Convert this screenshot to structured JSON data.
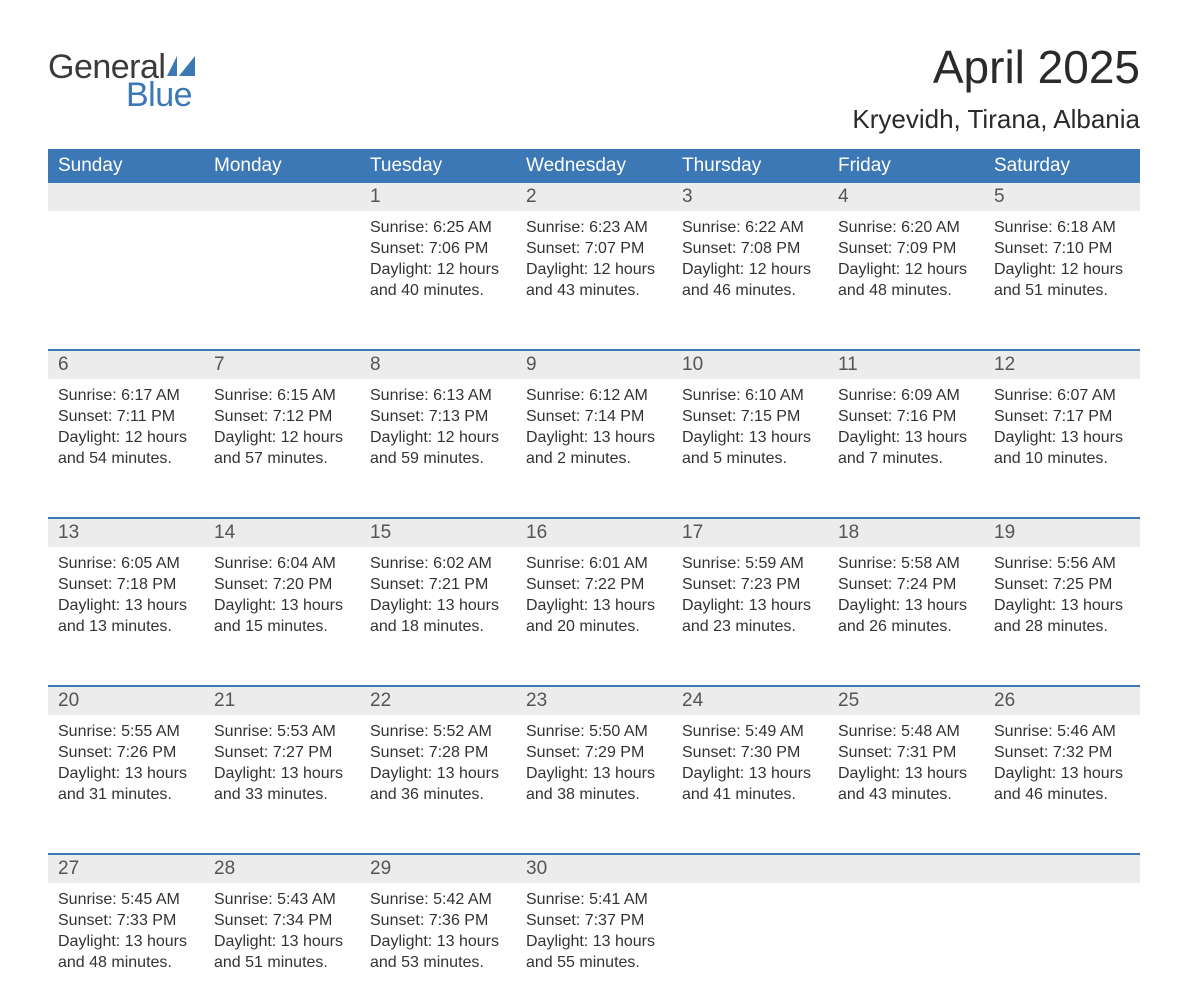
{
  "logo": {
    "line1": "General",
    "line2": "Blue",
    "icon_color": "#3b78b5"
  },
  "title": "April 2025",
  "location": "Kryevidh, Tirana, Albania",
  "colors": {
    "header_bg": "#3b78b5",
    "header_text": "#ffffff",
    "daynum_bg": "#ececec",
    "daynum_text": "#555555",
    "body_text": "#333333",
    "rule": "#3b78b5",
    "page_bg": "#ffffff"
  },
  "fonts": {
    "title_size_pt": 34,
    "location_size_pt": 20,
    "header_size_pt": 14,
    "daynum_size_pt": 14,
    "body_size_pt": 12
  },
  "columns": [
    "Sunday",
    "Monday",
    "Tuesday",
    "Wednesday",
    "Thursday",
    "Friday",
    "Saturday"
  ],
  "weeks": [
    [
      {
        "n": "",
        "sunrise": "",
        "sunset": "",
        "daylight": ""
      },
      {
        "n": "",
        "sunrise": "",
        "sunset": "",
        "daylight": ""
      },
      {
        "n": "1",
        "sunrise": "6:25 AM",
        "sunset": "7:06 PM",
        "daylight": "12 hours and 40 minutes."
      },
      {
        "n": "2",
        "sunrise": "6:23 AM",
        "sunset": "7:07 PM",
        "daylight": "12 hours and 43 minutes."
      },
      {
        "n": "3",
        "sunrise": "6:22 AM",
        "sunset": "7:08 PM",
        "daylight": "12 hours and 46 minutes."
      },
      {
        "n": "4",
        "sunrise": "6:20 AM",
        "sunset": "7:09 PM",
        "daylight": "12 hours and 48 minutes."
      },
      {
        "n": "5",
        "sunrise": "6:18 AM",
        "sunset": "7:10 PM",
        "daylight": "12 hours and 51 minutes."
      }
    ],
    [
      {
        "n": "6",
        "sunrise": "6:17 AM",
        "sunset": "7:11 PM",
        "daylight": "12 hours and 54 minutes."
      },
      {
        "n": "7",
        "sunrise": "6:15 AM",
        "sunset": "7:12 PM",
        "daylight": "12 hours and 57 minutes."
      },
      {
        "n": "8",
        "sunrise": "6:13 AM",
        "sunset": "7:13 PM",
        "daylight": "12 hours and 59 minutes."
      },
      {
        "n": "9",
        "sunrise": "6:12 AM",
        "sunset": "7:14 PM",
        "daylight": "13 hours and 2 minutes."
      },
      {
        "n": "10",
        "sunrise": "6:10 AM",
        "sunset": "7:15 PM",
        "daylight": "13 hours and 5 minutes."
      },
      {
        "n": "11",
        "sunrise": "6:09 AM",
        "sunset": "7:16 PM",
        "daylight": "13 hours and 7 minutes."
      },
      {
        "n": "12",
        "sunrise": "6:07 AM",
        "sunset": "7:17 PM",
        "daylight": "13 hours and 10 minutes."
      }
    ],
    [
      {
        "n": "13",
        "sunrise": "6:05 AM",
        "sunset": "7:18 PM",
        "daylight": "13 hours and 13 minutes."
      },
      {
        "n": "14",
        "sunrise": "6:04 AM",
        "sunset": "7:20 PM",
        "daylight": "13 hours and 15 minutes."
      },
      {
        "n": "15",
        "sunrise": "6:02 AM",
        "sunset": "7:21 PM",
        "daylight": "13 hours and 18 minutes."
      },
      {
        "n": "16",
        "sunrise": "6:01 AM",
        "sunset": "7:22 PM",
        "daylight": "13 hours and 20 minutes."
      },
      {
        "n": "17",
        "sunrise": "5:59 AM",
        "sunset": "7:23 PM",
        "daylight": "13 hours and 23 minutes."
      },
      {
        "n": "18",
        "sunrise": "5:58 AM",
        "sunset": "7:24 PM",
        "daylight": "13 hours and 26 minutes."
      },
      {
        "n": "19",
        "sunrise": "5:56 AM",
        "sunset": "7:25 PM",
        "daylight": "13 hours and 28 minutes."
      }
    ],
    [
      {
        "n": "20",
        "sunrise": "5:55 AM",
        "sunset": "7:26 PM",
        "daylight": "13 hours and 31 minutes."
      },
      {
        "n": "21",
        "sunrise": "5:53 AM",
        "sunset": "7:27 PM",
        "daylight": "13 hours and 33 minutes."
      },
      {
        "n": "22",
        "sunrise": "5:52 AM",
        "sunset": "7:28 PM",
        "daylight": "13 hours and 36 minutes."
      },
      {
        "n": "23",
        "sunrise": "5:50 AM",
        "sunset": "7:29 PM",
        "daylight": "13 hours and 38 minutes."
      },
      {
        "n": "24",
        "sunrise": "5:49 AM",
        "sunset": "7:30 PM",
        "daylight": "13 hours and 41 minutes."
      },
      {
        "n": "25",
        "sunrise": "5:48 AM",
        "sunset": "7:31 PM",
        "daylight": "13 hours and 43 minutes."
      },
      {
        "n": "26",
        "sunrise": "5:46 AM",
        "sunset": "7:32 PM",
        "daylight": "13 hours and 46 minutes."
      }
    ],
    [
      {
        "n": "27",
        "sunrise": "5:45 AM",
        "sunset": "7:33 PM",
        "daylight": "13 hours and 48 minutes."
      },
      {
        "n": "28",
        "sunrise": "5:43 AM",
        "sunset": "7:34 PM",
        "daylight": "13 hours and 51 minutes."
      },
      {
        "n": "29",
        "sunrise": "5:42 AM",
        "sunset": "7:36 PM",
        "daylight": "13 hours and 53 minutes."
      },
      {
        "n": "30",
        "sunrise": "5:41 AM",
        "sunset": "7:37 PM",
        "daylight": "13 hours and 55 minutes."
      },
      {
        "n": "",
        "sunrise": "",
        "sunset": "",
        "daylight": ""
      },
      {
        "n": "",
        "sunrise": "",
        "sunset": "",
        "daylight": ""
      },
      {
        "n": "",
        "sunrise": "",
        "sunset": "",
        "daylight": ""
      }
    ]
  ],
  "labels": {
    "sunrise": "Sunrise: ",
    "sunset": "Sunset: ",
    "daylight": "Daylight: "
  }
}
